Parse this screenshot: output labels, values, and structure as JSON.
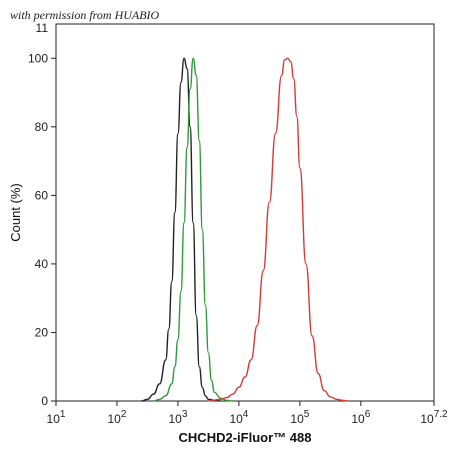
{
  "watermark": "with permission from HUABIO",
  "chart_data": {
    "type": "line",
    "xlabel": "CHCHD2-iFluor™ 488",
    "ylabel": "Count  (%)",
    "xscale": "log",
    "xlim": [
      10,
      15848932
    ],
    "ylim": [
      0,
      110
    ],
    "grid": false,
    "x_ticks": [
      {
        "value": 10,
        "label": "10",
        "exp": "1"
      },
      {
        "value": 100,
        "label": "10",
        "exp": "2"
      },
      {
        "value": 1000,
        "label": "10",
        "exp": "3"
      },
      {
        "value": 10000,
        "label": "10",
        "exp": "4"
      },
      {
        "value": 100000,
        "label": "10",
        "exp": "5"
      },
      {
        "value": 1000000,
        "label": "10",
        "exp": "6"
      },
      {
        "value": 15848932,
        "label": "10",
        "exp": "7.2"
      }
    ],
    "y_ticks": [
      0,
      20,
      40,
      60,
      80,
      100
    ],
    "y_tick_labels": [
      "0",
      "20",
      "40",
      "60",
      "80",
      "100"
    ],
    "y_top_label": "11",
    "series": [
      {
        "color": "#222222",
        "x": [
          251,
          316,
          398,
          501,
          631,
          708,
          794,
          891,
          1000,
          1122,
          1259,
          1413,
          1585,
          1778,
          1995,
          2239,
          2512,
          2818,
          3162,
          3981,
          5012
        ],
        "y": [
          0,
          0.5,
          2,
          5,
          12,
          21,
          35,
          55,
          78,
          93,
          100,
          97,
          80,
          52,
          25,
          10,
          4,
          1.5,
          0.5,
          0.2,
          0
        ]
      },
      {
        "color": "#2e9a3a",
        "x": [
          398,
          501,
          631,
          794,
          891,
          1000,
          1122,
          1259,
          1413,
          1585,
          1778,
          1995,
          2239,
          2512,
          2818,
          3162,
          3548,
          3981,
          5012,
          6310,
          7943
        ],
        "y": [
          0,
          0.5,
          1.5,
          5,
          10,
          18,
          32,
          52,
          74,
          91,
          100,
          95,
          76,
          50,
          28,
          14,
          6,
          2.5,
          0.8,
          0.2,
          0
        ]
      },
      {
        "color": "#d43a3a",
        "x": [
          3162,
          5012,
          6310,
          7943,
          10000,
          12589,
          15849,
          19953,
          25119,
          31623,
          39811,
          50119,
          56234,
          63096,
          70795,
          79433,
          89125,
          100000,
          125893,
          158489,
          199526,
          251189,
          316228,
          398107,
          501187,
          630957
        ],
        "y": [
          0,
          0.5,
          1,
          2,
          4,
          7,
          12,
          22,
          38,
          58,
          78,
          95,
          99.5,
          100,
          99,
          94,
          83,
          68,
          40,
          19,
          8,
          3,
          1.2,
          0.5,
          0.2,
          0
        ]
      }
    ]
  }
}
